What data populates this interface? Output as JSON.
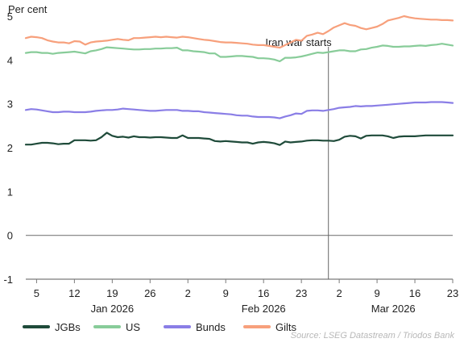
{
  "chart_data": {
    "type": "line",
    "ylabel": "Per cent",
    "ylim": [
      -1,
      5
    ],
    "yticks": [
      -1,
      0,
      1,
      2,
      3,
      4,
      5
    ],
    "x_dates": [
      "2026-01-03",
      "2026-01-04",
      "2026-01-05",
      "2026-01-06",
      "2026-01-07",
      "2026-01-08",
      "2026-01-09",
      "2026-01-10",
      "2026-01-11",
      "2026-01-12",
      "2026-01-13",
      "2026-01-14",
      "2026-01-15",
      "2026-01-16",
      "2026-01-17",
      "2026-01-18",
      "2026-01-19",
      "2026-01-20",
      "2026-01-21",
      "2026-01-22",
      "2026-01-23",
      "2026-01-24",
      "2026-01-25",
      "2026-01-26",
      "2026-01-27",
      "2026-01-28",
      "2026-01-29",
      "2026-01-30",
      "2026-01-31",
      "2026-02-01",
      "2026-02-02",
      "2026-02-03",
      "2026-02-04",
      "2026-02-05",
      "2026-02-06",
      "2026-02-07",
      "2026-02-08",
      "2026-02-09",
      "2026-02-10",
      "2026-02-11",
      "2026-02-12",
      "2026-02-13",
      "2026-02-14",
      "2026-02-15",
      "2026-02-16",
      "2026-02-17",
      "2026-02-18",
      "2026-02-19",
      "2026-02-20",
      "2026-02-21",
      "2026-02-22",
      "2026-02-23",
      "2026-02-24",
      "2026-02-25",
      "2026-02-26",
      "2026-02-27",
      "2026-02-28",
      "2026-03-01",
      "2026-03-02",
      "2026-03-03",
      "2026-03-04",
      "2026-03-05",
      "2026-03-06",
      "2026-03-07",
      "2026-03-08",
      "2026-03-09",
      "2026-03-10",
      "2026-03-11",
      "2026-03-12",
      "2026-03-13",
      "2026-03-14",
      "2026-03-15",
      "2026-03-16",
      "2026-03-17",
      "2026-03-18",
      "2026-03-19",
      "2026-03-20",
      "2026-03-21",
      "2026-03-22",
      "2026-03-23"
    ],
    "x_ticks": [
      {
        "date": "2026-01-05",
        "label": "5"
      },
      {
        "date": "2026-01-12",
        "label": "12"
      },
      {
        "date": "2026-01-19",
        "label": "19"
      },
      {
        "date": "2026-01-26",
        "label": "26"
      },
      {
        "date": "2026-02-02",
        "label": "2"
      },
      {
        "date": "2026-02-09",
        "label": "9"
      },
      {
        "date": "2026-02-16",
        "label": "16"
      },
      {
        "date": "2026-02-23",
        "label": "23"
      },
      {
        "date": "2026-03-02",
        "label": "2"
      },
      {
        "date": "2026-03-09",
        "label": "9"
      },
      {
        "date": "2026-03-16",
        "label": "16"
      },
      {
        "date": "2026-03-23",
        "label": "23"
      }
    ],
    "month_labels": [
      {
        "label": "Jan 2026",
        "date": "2026-01-19"
      },
      {
        "label": "Feb 2026",
        "date": "2026-02-16"
      },
      {
        "label": "Mar 2026",
        "date": "2026-03-12"
      }
    ],
    "series": [
      {
        "name": "JGBs",
        "color": "#1f4b3a",
        "values": [
          2.07,
          2.07,
          2.09,
          2.11,
          2.11,
          2.1,
          2.08,
          2.09,
          2.09,
          2.17,
          2.17,
          2.17,
          2.16,
          2.17,
          2.24,
          2.34,
          2.27,
          2.24,
          2.25,
          2.23,
          2.26,
          2.24,
          2.24,
          2.23,
          2.24,
          2.24,
          2.23,
          2.22,
          2.22,
          2.28,
          2.22,
          2.22,
          2.22,
          2.21,
          2.2,
          2.15,
          2.14,
          2.15,
          2.14,
          2.13,
          2.12,
          2.12,
          2.09,
          2.12,
          2.13,
          2.12,
          2.1,
          2.06,
          2.14,
          2.12,
          2.13,
          2.14,
          2.16,
          2.17,
          2.17,
          2.16,
          2.16,
          2.15,
          2.18,
          2.25,
          2.27,
          2.26,
          2.21,
          2.27,
          2.28,
          2.28,
          2.28,
          2.26,
          2.22,
          2.25,
          2.26,
          2.26,
          2.26,
          2.27,
          2.28,
          2.28,
          2.28,
          2.28,
          2.28,
          2.28
        ]
      },
      {
        "name": "US",
        "color": "#88cc99",
        "values": [
          4.16,
          4.18,
          4.18,
          4.16,
          4.16,
          4.14,
          4.16,
          4.17,
          4.18,
          4.19,
          4.17,
          4.15,
          4.2,
          4.22,
          4.25,
          4.29,
          4.28,
          4.27,
          4.26,
          4.25,
          4.24,
          4.24,
          4.25,
          4.25,
          4.26,
          4.26,
          4.27,
          4.27,
          4.28,
          4.22,
          4.22,
          4.2,
          4.19,
          4.18,
          4.15,
          4.15,
          4.07,
          4.07,
          4.08,
          4.09,
          4.09,
          4.08,
          4.07,
          4.04,
          4.04,
          4.03,
          4.01,
          3.97,
          4.05,
          4.05,
          4.06,
          4.08,
          4.11,
          4.14,
          4.17,
          4.16,
          4.18,
          4.2,
          4.22,
          4.22,
          4.2,
          4.2,
          4.24,
          4.25,
          4.28,
          4.3,
          4.33,
          4.32,
          4.3,
          4.3,
          4.31,
          4.31,
          4.32,
          4.33,
          4.32,
          4.34,
          4.35,
          4.37,
          4.35,
          4.33
        ]
      },
      {
        "name": "Bunds",
        "color": "#8a7ee6",
        "values": [
          2.86,
          2.88,
          2.87,
          2.85,
          2.83,
          2.81,
          2.81,
          2.82,
          2.82,
          2.81,
          2.81,
          2.81,
          2.82,
          2.84,
          2.85,
          2.86,
          2.86,
          2.87,
          2.89,
          2.88,
          2.87,
          2.86,
          2.85,
          2.84,
          2.84,
          2.85,
          2.86,
          2.86,
          2.86,
          2.84,
          2.84,
          2.83,
          2.83,
          2.81,
          2.8,
          2.79,
          2.78,
          2.77,
          2.76,
          2.74,
          2.73,
          2.73,
          2.71,
          2.7,
          2.7,
          2.7,
          2.69,
          2.67,
          2.71,
          2.74,
          2.78,
          2.77,
          2.84,
          2.85,
          2.85,
          2.84,
          2.86,
          2.88,
          2.91,
          2.92,
          2.93,
          2.95,
          2.94,
          2.95,
          2.95,
          2.96,
          2.97,
          2.98,
          2.99,
          3.0,
          3.01,
          3.02,
          3.03,
          3.03,
          3.03,
          3.04,
          3.04,
          3.04,
          3.03,
          3.02
        ]
      },
      {
        "name": "Gilts",
        "color": "#f7a07c",
        "values": [
          4.5,
          4.53,
          4.52,
          4.5,
          4.45,
          4.42,
          4.4,
          4.4,
          4.38,
          4.43,
          4.42,
          4.35,
          4.4,
          4.42,
          4.43,
          4.44,
          4.46,
          4.48,
          4.46,
          4.45,
          4.5,
          4.5,
          4.51,
          4.52,
          4.53,
          4.52,
          4.53,
          4.52,
          4.51,
          4.53,
          4.52,
          4.5,
          4.48,
          4.46,
          4.45,
          4.43,
          4.41,
          4.4,
          4.4,
          4.39,
          4.38,
          4.37,
          4.35,
          4.34,
          4.34,
          4.32,
          4.3,
          4.28,
          4.34,
          4.4,
          4.46,
          4.44,
          4.55,
          4.58,
          4.62,
          4.59,
          4.66,
          4.74,
          4.79,
          4.84,
          4.8,
          4.78,
          4.73,
          4.7,
          4.73,
          4.76,
          4.82,
          4.9,
          4.93,
          4.96,
          5.0,
          4.97,
          4.95,
          4.94,
          4.93,
          4.92,
          4.92,
          4.91,
          4.91,
          4.9
        ]
      }
    ],
    "event_line": {
      "date": "2026-02-28",
      "label": "Iran war starts"
    },
    "grid": false,
    "legend_position": "bottom-left",
    "source": "Source: LSEG Datastream / Triodos Bank"
  }
}
